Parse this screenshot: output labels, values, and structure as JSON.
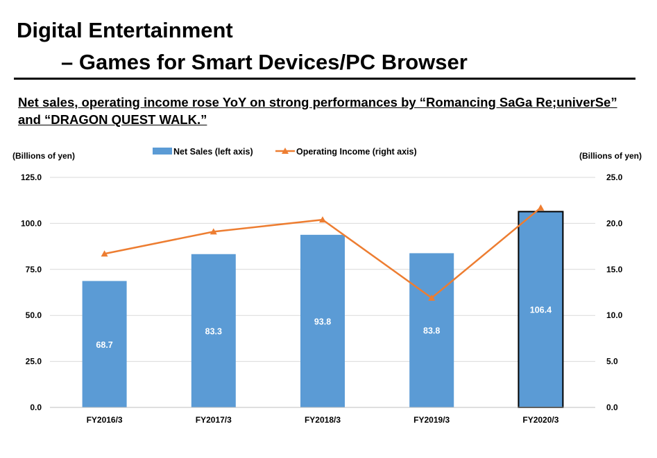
{
  "title_line1": "Digital Entertainment",
  "title_line2": "– Games for Smart Devices/PC Browser",
  "subtitle": "Net sales, operating income rose YoY on strong performances by “Romancing SaGa Re;univerSe” and “DRAGON QUEST WALK.”",
  "chart_data": {
    "type": "bar",
    "categories": [
      "FY2016/3",
      "FY2017/3",
      "FY2018/3",
      "FY2019/3",
      "FY2020/3"
    ],
    "series": [
      {
        "name": "Net Sales (left axis)",
        "type": "bar",
        "axis": "left",
        "values": [
          68.7,
          83.3,
          93.8,
          83.8,
          106.4
        ],
        "color": "#5b9bd5"
      },
      {
        "name": "Operating Income (right axis)",
        "type": "line",
        "axis": "right",
        "values": [
          16.7,
          19.1,
          20.4,
          11.9,
          21.7
        ],
        "color": "#ed7d31"
      }
    ],
    "data_labels": [
      "68.7",
      "83.3",
      "93.8",
      "83.8",
      "106.4"
    ],
    "highlighted_bar": "FY2020/3",
    "left_axis": {
      "label": "(Billions of yen)",
      "ylim": [
        0,
        125
      ],
      "ticks": [
        "0.0",
        "25.0",
        "50.0",
        "75.0",
        "100.0",
        "125.0"
      ]
    },
    "right_axis": {
      "label": "(Billions of yen)",
      "ylim": [
        0,
        25
      ],
      "ticks": [
        "0.0",
        "5.0",
        "10.0",
        "15.0",
        "20.0",
        "25.0"
      ]
    },
    "grid": true,
    "legend_position": "top-center"
  }
}
